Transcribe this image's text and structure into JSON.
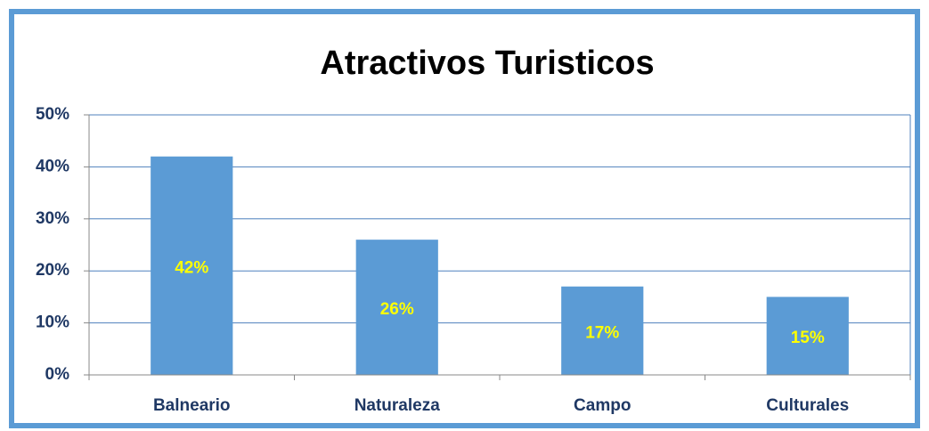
{
  "chart_data": {
    "type": "bar",
    "title": "Atractivos Turisticos",
    "categories": [
      "Balneario",
      "Naturaleza",
      "Campo",
      "Culturales"
    ],
    "values": [
      42,
      26,
      17,
      15
    ],
    "value_labels": [
      "42%",
      "26%",
      "17%",
      "15%"
    ],
    "color": "#5b9bd5",
    "ylim": [
      0,
      50
    ],
    "yticks": [
      {
        "value": 0,
        "label": "0%"
      },
      {
        "value": 10,
        "label": "10%"
      },
      {
        "value": 20,
        "label": "20%"
      },
      {
        "value": 30,
        "label": "30%"
      },
      {
        "value": 40,
        "label": "40%"
      },
      {
        "value": 50,
        "label": "50%"
      }
    ],
    "grid": true
  }
}
